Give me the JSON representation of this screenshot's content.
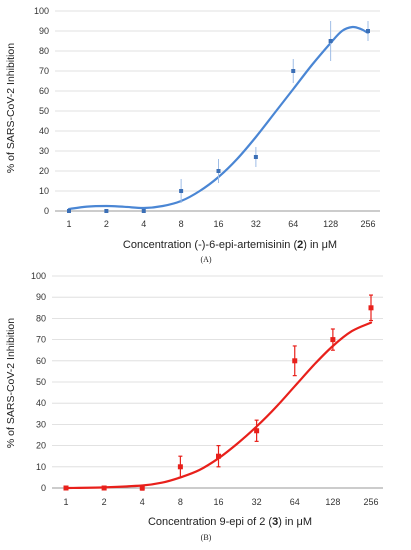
{
  "chart_data": [
    {
      "type": "scatter",
      "panel_label": "(A)",
      "xlabel_pre": "Concentration (-)-6-epi-artemisinin (",
      "xlabel_bold": "2",
      "xlabel_post": ") in μM",
      "ylabel": "% of SARS-CoV-2 Inhibition",
      "xscale": "log2",
      "xlim": [
        1,
        256
      ],
      "ylim": [
        0,
        100
      ],
      "x_ticks": [
        "1",
        "2",
        "4",
        "8",
        "16",
        "32",
        "64",
        "128",
        "256"
      ],
      "y_ticks": [
        "0",
        "10",
        "20",
        "30",
        "40",
        "50",
        "60",
        "70",
        "80",
        "90",
        "100"
      ],
      "grid": "horizontal",
      "color": "#4a86d4",
      "points": [
        {
          "x": 1,
          "y": 0,
          "err": 0
        },
        {
          "x": 2,
          "y": 0,
          "err": 0
        },
        {
          "x": 4,
          "y": 0,
          "err": 0
        },
        {
          "x": 8,
          "y": 10,
          "err": 6
        },
        {
          "x": 16,
          "y": 20,
          "err": 6
        },
        {
          "x": 32,
          "y": 27,
          "err": 5
        },
        {
          "x": 64,
          "y": 70,
          "err": 6
        },
        {
          "x": 128,
          "y": 85,
          "err": 10
        },
        {
          "x": 256,
          "y": 90,
          "err": 5
        }
      ],
      "fit_curve": [
        {
          "x": 1,
          "y": 1
        },
        {
          "x": 1.4,
          "y": 2.2
        },
        {
          "x": 2,
          "y": 2.5
        },
        {
          "x": 2.8,
          "y": 2.1
        },
        {
          "x": 4,
          "y": 1.5
        },
        {
          "x": 5.7,
          "y": 2.5
        },
        {
          "x": 8,
          "y": 5
        },
        {
          "x": 11.3,
          "y": 10
        },
        {
          "x": 16,
          "y": 17
        },
        {
          "x": 22.6,
          "y": 26
        },
        {
          "x": 32,
          "y": 37
        },
        {
          "x": 45.3,
          "y": 49
        },
        {
          "x": 64,
          "y": 61
        },
        {
          "x": 90.5,
          "y": 73
        },
        {
          "x": 128,
          "y": 84
        },
        {
          "x": 158,
          "y": 90
        },
        {
          "x": 192,
          "y": 92
        },
        {
          "x": 224,
          "y": 91
        },
        {
          "x": 256,
          "y": 89
        }
      ]
    },
    {
      "type": "scatter",
      "panel_label": "(B)",
      "xlabel_pre": "Concentration 9-epi of 2 (",
      "xlabel_bold": "3",
      "xlabel_post": ") in μM",
      "ylabel": "% of SARS-CoV-2 Inhibition",
      "xscale": "log2",
      "xlim": [
        1,
        256
      ],
      "ylim": [
        0,
        100
      ],
      "x_ticks": [
        "1",
        "2",
        "4",
        "8",
        "16",
        "32",
        "64",
        "128",
        "256"
      ],
      "y_ticks": [
        "0",
        "10",
        "20",
        "30",
        "40",
        "50",
        "60",
        "70",
        "80",
        "90",
        "100"
      ],
      "grid": "horizontal",
      "color": "#e8201b",
      "points": [
        {
          "x": 1,
          "y": 0,
          "err": 0
        },
        {
          "x": 2,
          "y": 0,
          "err": 0
        },
        {
          "x": 4,
          "y": 0,
          "err": 1
        },
        {
          "x": 8,
          "y": 10,
          "err": 5
        },
        {
          "x": 16,
          "y": 15,
          "err": 5
        },
        {
          "x": 32,
          "y": 27,
          "err": 5
        },
        {
          "x": 64,
          "y": 60,
          "err": 7
        },
        {
          "x": 128,
          "y": 70,
          "err": 5
        },
        {
          "x": 256,
          "y": 85,
          "err": 6
        }
      ],
      "fit_curve": [
        {
          "x": 1,
          "y": 0
        },
        {
          "x": 2,
          "y": 0.3
        },
        {
          "x": 4,
          "y": 1.2
        },
        {
          "x": 5.7,
          "y": 2.5
        },
        {
          "x": 8,
          "y": 5
        },
        {
          "x": 11.3,
          "y": 8.5
        },
        {
          "x": 16,
          "y": 14
        },
        {
          "x": 22.6,
          "y": 21
        },
        {
          "x": 32,
          "y": 29
        },
        {
          "x": 45.3,
          "y": 38
        },
        {
          "x": 64,
          "y": 48
        },
        {
          "x": 90.5,
          "y": 58
        },
        {
          "x": 128,
          "y": 67
        },
        {
          "x": 181,
          "y": 74
        },
        {
          "x": 256,
          "y": 78
        }
      ]
    }
  ]
}
